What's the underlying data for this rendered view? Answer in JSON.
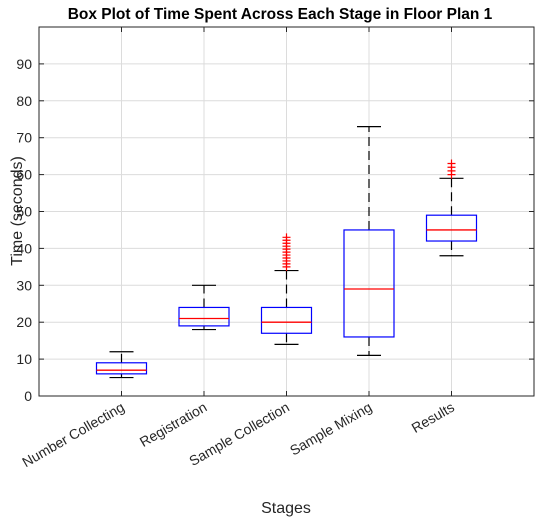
{
  "chart_data": {
    "type": "box",
    "title": "Box Plot of Time Spent Across Each Stage in Floor Plan 1",
    "xlabel": "Stages",
    "ylabel": "Time (seconds)",
    "ylim": [
      0,
      100
    ],
    "yticks": [
      0,
      10,
      20,
      30,
      40,
      50,
      60,
      70,
      80,
      90
    ],
    "grid": true,
    "categories": [
      "Number Collecting",
      "Registration",
      "Sample Collection",
      "Sample Mixing",
      "Results"
    ],
    "boxes": [
      {
        "name": "Number Collecting",
        "whisker_low": 5,
        "q1": 6,
        "median": 7,
        "q3": 9,
        "whisker_high": 12,
        "outliers": []
      },
      {
        "name": "Registration",
        "whisker_low": 18,
        "q1": 19,
        "median": 21,
        "q3": 24,
        "whisker_high": 30,
        "outliers": []
      },
      {
        "name": "Sample Collection",
        "whisker_low": 14,
        "q1": 17,
        "median": 20,
        "q3": 24,
        "whisker_high": 34,
        "outliers": [
          35,
          35.8,
          36.6,
          37.4,
          38.2,
          39,
          39.8,
          40.6,
          41.4,
          42.2,
          43
        ]
      },
      {
        "name": "Sample Mixing",
        "whisker_low": 11,
        "q1": 16,
        "median": 29,
        "q3": 45,
        "whisker_high": 73,
        "outliers": []
      },
      {
        "name": "Results",
        "whisker_low": 38,
        "q1": 42,
        "median": 45,
        "q3": 49,
        "whisker_high": 59,
        "outliers": [
          60,
          61,
          62,
          63
        ]
      }
    ],
    "colors": {
      "box": "#0000ff",
      "median": "#ff0000",
      "whisker": "#000000",
      "outlier": "#ff0000"
    }
  }
}
